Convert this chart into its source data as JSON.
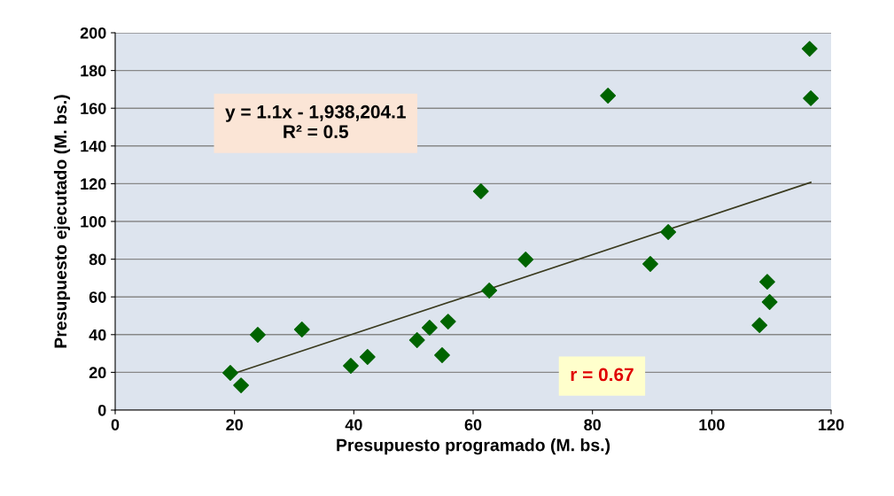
{
  "chart_data": {
    "type": "scatter",
    "xlabel": "Presupuesto programado (M. bs.)",
    "ylabel": "Presupuesto ejecutado (M. bs.)",
    "annotations": [
      "y = 1.1x - 1,938,204.1\nR² = 0.5",
      "r = 0.67"
    ],
    "series": [
      {
        "color": "#006400",
        "marker": "diamond",
        "x": [
          19.3,
          21.1,
          23.9,
          31.3,
          39.5,
          42.3,
          50.6,
          52.7,
          54.8,
          55.8,
          61.3,
          62.7,
          68.8,
          82.6,
          89.7,
          92.7,
          108,
          109.3,
          109.7,
          116.4,
          116.6
        ],
        "values": [
          19.7,
          13.1,
          39.9,
          42.7,
          23.5,
          28.2,
          37.1,
          43.7,
          29.1,
          46.9,
          116,
          63.4,
          79.8,
          166.7,
          77.5,
          94.4,
          45,
          68,
          57.3,
          191.5,
          165.3
        ]
      },
      {
        "type": "line",
        "color": "#3a3a1e",
        "marker": "none",
        "x": [
          19.3,
          116.6
        ],
        "values": [
          18.8,
          120.7
        ]
      }
    ],
    "xlim": [
      0,
      120
    ],
    "xticks": [
      0,
      20,
      40,
      60,
      80,
      100,
      120
    ],
    "ylim": [
      0,
      200
    ],
    "yticks": [
      0,
      20,
      40,
      60,
      80,
      100,
      120,
      140,
      160,
      180,
      200
    ],
    "grid": "y",
    "legend": false
  }
}
